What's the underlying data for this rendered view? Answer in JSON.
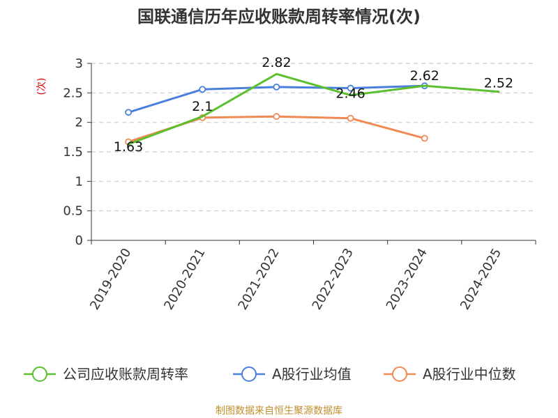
{
  "chart_data": {
    "type": "line",
    "title": "国联通信历年应收账款周转率情况(次)",
    "ylabel": "(次)",
    "xlabel": "",
    "categories": [
      "2019-2020",
      "2020-2021",
      "2021-2022",
      "2022-2023",
      "2023-2024",
      "2024-2025"
    ],
    "ylim": [
      0,
      3
    ],
    "yticks": [
      0,
      0.5,
      1,
      1.5,
      2,
      2.5,
      3
    ],
    "ytick_labels": [
      "0",
      "0.5",
      "1",
      "1.5",
      "2",
      "2.5",
      "3"
    ],
    "grid": true,
    "legend_position": "bottom",
    "series": [
      {
        "name": "公司应收账款周转率",
        "color": "#5bbf2e",
        "values": [
          1.63,
          2.1,
          2.82,
          2.46,
          2.62,
          2.52
        ],
        "labels": [
          "1.63",
          "2.1",
          "2.82",
          "2.46",
          "2.62",
          "2.52"
        ],
        "markers": false
      },
      {
        "name": "A股行业均值",
        "color": "#4a7fdc",
        "values": [
          2.17,
          2.56,
          2.6,
          2.58,
          2.62,
          null
        ],
        "labels": null,
        "markers": true
      },
      {
        "name": "A股行业中位数",
        "color": "#f08a55",
        "values": [
          1.67,
          2.08,
          2.1,
          2.07,
          1.73,
          null
        ],
        "labels": null,
        "markers": true
      }
    ],
    "source": "制图数据来自恒生聚源数据库"
  }
}
